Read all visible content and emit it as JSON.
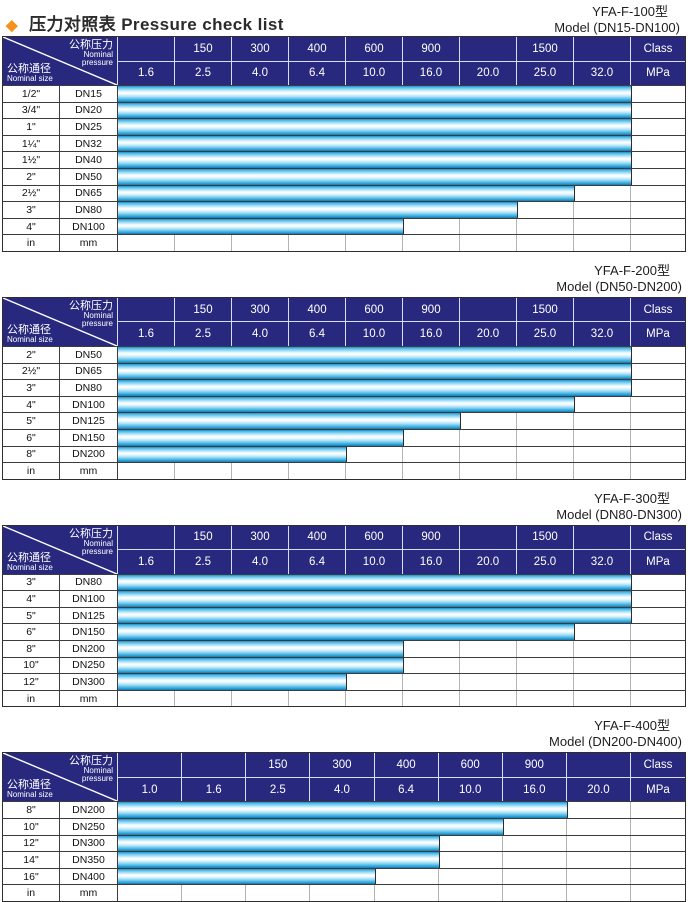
{
  "page_title": {
    "diamond": "◆",
    "zh": "压力对照表",
    "en": "Pressure check list"
  },
  "corner_header": {
    "pressure_zh": "公称压力",
    "pressure_en1": "Nominal",
    "pressure_en2": "pressure",
    "size_zh": "公称通径",
    "size_en": "Nominal size"
  },
  "colors": {
    "header_bg": "#28287E",
    "header_text": "#ffffff",
    "bar_main": "#29A8E0",
    "bar_highlight": "#ffffff",
    "diamond_accent": "#F5921E",
    "grid_light": "#b3b3b3",
    "grid_dark": "#3c3c3c"
  },
  "tables": [
    {
      "model": "YFA-F-100型",
      "model_range": "Model (DN15-DN100)",
      "class_values": [
        "",
        "150",
        "300",
        "400",
        "600",
        "900",
        "",
        "1500",
        ""
      ],
      "class_unit": "Class",
      "mpa_values": [
        "1.6",
        "2.5",
        "4.0",
        "6.4",
        "10.0",
        "16.0",
        "20.0",
        "25.0",
        "32.0"
      ],
      "mpa_unit": "MPa",
      "rows": [
        {
          "inch": "1/2\"",
          "dn": "DN15",
          "span": 9,
          "max_mpa": "32.0"
        },
        {
          "inch": "3/4\"",
          "dn": "DN20",
          "span": 9,
          "max_mpa": "32.0"
        },
        {
          "inch": "1\"",
          "dn": "DN25",
          "span": 9,
          "max_mpa": "32.0"
        },
        {
          "inch": "1¼\"",
          "dn": "DN32",
          "span": 9,
          "max_mpa": "32.0"
        },
        {
          "inch": "1½\"",
          "dn": "DN40",
          "span": 9,
          "max_mpa": "32.0"
        },
        {
          "inch": "2\"",
          "dn": "DN50",
          "span": 9,
          "max_mpa": "32.0"
        },
        {
          "inch": "2½\"",
          "dn": "DN65",
          "span": 8,
          "max_mpa": "25.0"
        },
        {
          "inch": "3\"",
          "dn": "DN80",
          "span": 7,
          "max_mpa": "20.0"
        },
        {
          "inch": "4\"",
          "dn": "DN100",
          "span": 5,
          "max_mpa": "10.0"
        },
        {
          "inch": "in",
          "dn": "mm",
          "span": 0,
          "max_mpa": ""
        }
      ]
    },
    {
      "model": "YFA-F-200型",
      "model_range": "Model (DN50-DN200)",
      "class_values": [
        "",
        "150",
        "300",
        "400",
        "600",
        "900",
        "",
        "1500",
        ""
      ],
      "class_unit": "Class",
      "mpa_values": [
        "1.6",
        "2.5",
        "4.0",
        "6.4",
        "10.0",
        "16.0",
        "20.0",
        "25.0",
        "32.0"
      ],
      "mpa_unit": "MPa",
      "rows": [
        {
          "inch": "2\"",
          "dn": "DN50",
          "span": 9,
          "max_mpa": "32.0"
        },
        {
          "inch": "2½\"",
          "dn": "DN65",
          "span": 9,
          "max_mpa": "32.0"
        },
        {
          "inch": "3\"",
          "dn": "DN80",
          "span": 9,
          "max_mpa": "32.0"
        },
        {
          "inch": "4\"",
          "dn": "DN100",
          "span": 8,
          "max_mpa": "25.0"
        },
        {
          "inch": "5\"",
          "dn": "DN125",
          "span": 6,
          "max_mpa": "16.0"
        },
        {
          "inch": "6\"",
          "dn": "DN150",
          "span": 5,
          "max_mpa": "10.0"
        },
        {
          "inch": "8\"",
          "dn": "DN200",
          "span": 4,
          "max_mpa": "6.4"
        },
        {
          "inch": "in",
          "dn": "mm",
          "span": 0,
          "max_mpa": ""
        }
      ]
    },
    {
      "model": "YFA-F-300型",
      "model_range": "Model (DN80-DN300)",
      "class_values": [
        "",
        "150",
        "300",
        "400",
        "600",
        "900",
        "",
        "1500",
        ""
      ],
      "class_unit": "Class",
      "mpa_values": [
        "1.6",
        "2.5",
        "4.0",
        "6.4",
        "10.0",
        "16.0",
        "20.0",
        "25.0",
        "32.0"
      ],
      "mpa_unit": "MPa",
      "rows": [
        {
          "inch": "3\"",
          "dn": "DN80",
          "span": 9,
          "max_mpa": "32.0"
        },
        {
          "inch": "4\"",
          "dn": "DN100",
          "span": 9,
          "max_mpa": "32.0"
        },
        {
          "inch": "5\"",
          "dn": "DN125",
          "span": 9,
          "max_mpa": "32.0"
        },
        {
          "inch": "6\"",
          "dn": "DN150",
          "span": 8,
          "max_mpa": "25.0"
        },
        {
          "inch": "8\"",
          "dn": "DN200",
          "span": 5,
          "max_mpa": "10.0"
        },
        {
          "inch": "10\"",
          "dn": "DN250",
          "span": 5,
          "max_mpa": "10.0"
        },
        {
          "inch": "12\"",
          "dn": "DN300",
          "span": 4,
          "max_mpa": "6.4"
        },
        {
          "inch": "in",
          "dn": "mm",
          "span": 0,
          "max_mpa": ""
        }
      ]
    },
    {
      "model": "YFA-F-400型",
      "model_range": "Model (DN200-DN400)",
      "class_values": [
        "",
        "",
        "150",
        "300",
        "400",
        "600",
        "900",
        ""
      ],
      "class_unit": "Class",
      "mpa_values": [
        "1.0",
        "1.6",
        "2.5",
        "4.0",
        "6.4",
        "10.0",
        "16.0",
        "20.0"
      ],
      "mpa_unit": "MPa",
      "rows": [
        {
          "inch": "8\"",
          "dn": "DN200",
          "span": 7,
          "max_mpa": "16.0"
        },
        {
          "inch": "10\"",
          "dn": "DN250",
          "span": 6,
          "max_mpa": "10.0"
        },
        {
          "inch": "12\"",
          "dn": "DN300",
          "span": 5,
          "max_mpa": "6.4"
        },
        {
          "inch": "14\"",
          "dn": "DN350",
          "span": 5,
          "max_mpa": "6.4"
        },
        {
          "inch": "16\"",
          "dn": "DN400",
          "span": 4,
          "max_mpa": "4.0"
        },
        {
          "inch": "in",
          "dn": "mm",
          "span": 0,
          "max_mpa": ""
        }
      ]
    }
  ]
}
